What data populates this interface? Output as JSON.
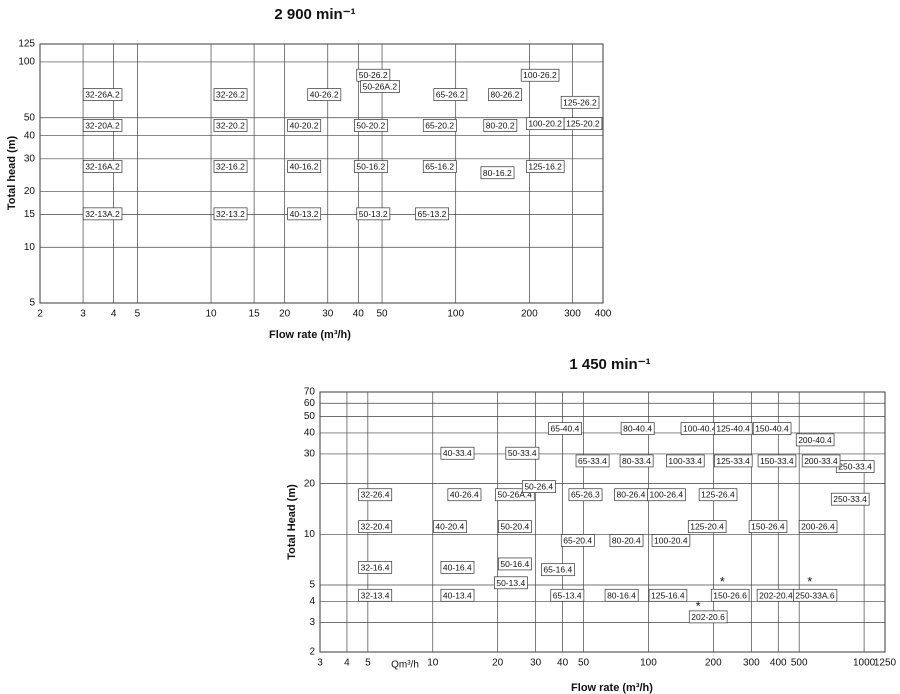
{
  "chart_data": [
    {
      "type": "log-log-chart",
      "title": "2 900 min⁻¹",
      "xlabel": "Flow rate (m³/h)",
      "ylabel": "Total head (m)",
      "log_x": true,
      "log_y": true,
      "grid": true,
      "xlim": [
        2,
        400
      ],
      "ylim": [
        5,
        125
      ],
      "xticks": [
        2,
        3,
        4,
        5,
        10,
        15,
        20,
        30,
        40,
        50,
        100,
        200,
        300,
        400
      ],
      "yticks": [
        5,
        10,
        15,
        20,
        30,
        40,
        50,
        100,
        125
      ],
      "labels": [
        {
          "text": "32-26A.2",
          "x": 3.6,
          "y": 66
        },
        {
          "text": "32-26.2",
          "x": 12,
          "y": 66
        },
        {
          "text": "40-26.2",
          "x": 29,
          "y": 66
        },
        {
          "text": "50-26.2",
          "x": 46,
          "y": 84
        },
        {
          "text": "50-26A.2",
          "x": 49,
          "y": 73
        },
        {
          "text": "65-26.2",
          "x": 95,
          "y": 66
        },
        {
          "text": "80-26.2",
          "x": 159,
          "y": 66
        },
        {
          "text": "100-26.2",
          "x": 221,
          "y": 84
        },
        {
          "text": "125-26.2",
          "x": 322,
          "y": 60
        },
        {
          "text": "32-20A.2",
          "x": 3.6,
          "y": 45
        },
        {
          "text": "32-20.2",
          "x": 12,
          "y": 45
        },
        {
          "text": "40-20.2",
          "x": 24,
          "y": 45
        },
        {
          "text": "50-20.2",
          "x": 45,
          "y": 45
        },
        {
          "text": "65-20.2",
          "x": 86,
          "y": 45
        },
        {
          "text": "80-20.2",
          "x": 152,
          "y": 45
        },
        {
          "text": "100-20.2",
          "x": 232,
          "y": 46
        },
        {
          "text": "125-20.2",
          "x": 331,
          "y": 46
        },
        {
          "text": "32-16A.2",
          "x": 3.6,
          "y": 27
        },
        {
          "text": "32-16.2",
          "x": 12,
          "y": 27
        },
        {
          "text": "40-16.2",
          "x": 24,
          "y": 27
        },
        {
          "text": "50-16.2",
          "x": 45,
          "y": 27
        },
        {
          "text": "65-16.2",
          "x": 86,
          "y": 27
        },
        {
          "text": "80-16.2",
          "x": 148,
          "y": 25
        },
        {
          "text": "125-16.2",
          "x": 232,
          "y": 27
        },
        {
          "text": "32-13A.2",
          "x": 3.6,
          "y": 15
        },
        {
          "text": "32-13.2",
          "x": 12,
          "y": 15
        },
        {
          "text": "40-13.2",
          "x": 24,
          "y": 15
        },
        {
          "text": "50-13.2",
          "x": 46,
          "y": 15
        },
        {
          "text": "65-13.2",
          "x": 80,
          "y": 15
        }
      ]
    },
    {
      "type": "log-log-chart",
      "title": "1 450 min⁻¹",
      "xlabel": "Flow rate (m³/h)",
      "ylabel": "Total Head (m)",
      "x_unit_note": "Qm³/h",
      "log_x": true,
      "log_y": true,
      "grid": true,
      "xlim": [
        3,
        1250
      ],
      "ylim": [
        2,
        70
      ],
      "xticks": [
        3,
        4,
        5,
        10,
        20,
        30,
        40,
        50,
        100,
        200,
        300,
        400,
        500,
        1000,
        1250
      ],
      "yticks": [
        2,
        3,
        4,
        5,
        10,
        20,
        30,
        40,
        50,
        60,
        70
      ],
      "labels": [
        {
          "text": "65-40.4",
          "x": 41,
          "y": 42
        },
        {
          "text": "80-40.4",
          "x": 89,
          "y": 42
        },
        {
          "text": "100-40.4",
          "x": 173,
          "y": 42
        },
        {
          "text": "125-40.4",
          "x": 247,
          "y": 42
        },
        {
          "text": "150-40.4",
          "x": 374,
          "y": 42
        },
        {
          "text": "200-40.4",
          "x": 592,
          "y": 36
        },
        {
          "text": "250-33.4",
          "x": 908,
          "y": 25
        },
        {
          "text": "40-33.4",
          "x": 13,
          "y": 30
        },
        {
          "text": "50-33.4",
          "x": 26,
          "y": 30
        },
        {
          "text": "65-33.4",
          "x": 55,
          "y": 27
        },
        {
          "text": "80-33.4",
          "x": 88,
          "y": 27
        },
        {
          "text": "100-33.4",
          "x": 148,
          "y": 27
        },
        {
          "text": "125-33.4",
          "x": 247,
          "y": 27
        },
        {
          "text": "150-33.4",
          "x": 394,
          "y": 27
        },
        {
          "text": "200-33.4",
          "x": 631,
          "y": 27
        },
        {
          "text": "250-33.4",
          "x": 861,
          "y": 16
        },
        {
          "text": "32-26.4",
          "x": 5.4,
          "y": 17
        },
        {
          "text": "40-26.4",
          "x": 14,
          "y": 17
        },
        {
          "text": "50-26A.4",
          "x": 24,
          "y": 17
        },
        {
          "text": "50-26.4",
          "x": 31,
          "y": 19
        },
        {
          "text": "65-26.3",
          "x": 51,
          "y": 17
        },
        {
          "text": "80-26.4",
          "x": 83,
          "y": 17
        },
        {
          "text": "100-26.4",
          "x": 121,
          "y": 17
        },
        {
          "text": "125-26.4",
          "x": 210,
          "y": 17
        },
        {
          "text": "125-20.4",
          "x": 187,
          "y": 11
        },
        {
          "text": "150-26.4",
          "x": 358,
          "y": 11
        },
        {
          "text": "200-26.4",
          "x": 611,
          "y": 11
        },
        {
          "text": "32-20.4",
          "x": 5.4,
          "y": 11
        },
        {
          "text": "40-20.4",
          "x": 12,
          "y": 11
        },
        {
          "text": "50-20.4",
          "x": 24,
          "y": 11
        },
        {
          "text": "65-20.4",
          "x": 47,
          "y": 9.1
        },
        {
          "text": "80-20.4",
          "x": 79,
          "y": 9.1
        },
        {
          "text": "100-20.4",
          "x": 127,
          "y": 9.1
        },
        {
          "text": "32-16.4",
          "x": 5.4,
          "y": 6.3
        },
        {
          "text": "40-16.4",
          "x": 13,
          "y": 6.3
        },
        {
          "text": "50-16.4",
          "x": 24,
          "y": 6.6
        },
        {
          "text": "65-16.4",
          "x": 38,
          "y": 6.1
        },
        {
          "text": "50-13.4",
          "x": 23,
          "y": 5.1
        },
        {
          "text": "32-13.4",
          "x": 5.4,
          "y": 4.3
        },
        {
          "text": "40-13.4",
          "x": 13,
          "y": 4.3
        },
        {
          "text": "65-13.4",
          "x": 42,
          "y": 4.3
        },
        {
          "text": "80-16.4",
          "x": 75,
          "y": 4.3
        },
        {
          "text": "125-16.4",
          "x": 123,
          "y": 4.3
        },
        {
          "text": "150-26.6",
          "x": 239,
          "y": 4.3
        },
        {
          "text": "202-20.4",
          "x": 390,
          "y": 4.3
        },
        {
          "text": "250-33A.6",
          "x": 592,
          "y": 4.3
        },
        {
          "text": "202-20.6",
          "x": 189,
          "y": 3.2
        },
        {
          "text": "*",
          "x": 220,
          "y": 5.3,
          "boxed": false
        },
        {
          "text": "*",
          "x": 560,
          "y": 5.3,
          "boxed": false
        },
        {
          "text": "*",
          "x": 170,
          "y": 3.8,
          "boxed": false
        }
      ]
    }
  ]
}
